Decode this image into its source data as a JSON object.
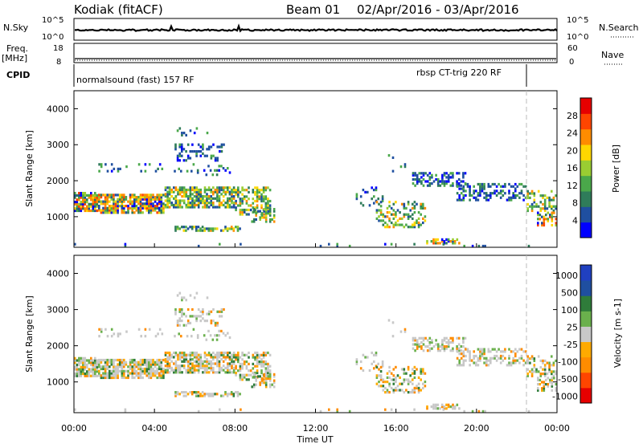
{
  "header": {
    "station": "Kodiak (fitACF)",
    "beam": "Beam 01",
    "date_range": "02/Apr/2016 - 03/Apr/2016"
  },
  "panels": {
    "nsky_label": "N.Sky",
    "nsearch_label": "N.Search",
    "freq_label": "Freq.",
    "freq_unit": "[MHz]",
    "nave_label": "Nave",
    "cpid_label": "CPID",
    "log_top": "10^5",
    "log_bottom": "10^0",
    "freq_ticks": [
      "18",
      "8"
    ],
    "nave_ticks": [
      "60",
      "0"
    ],
    "cpid_left": "normalsound (fast) 157 RF",
    "cpid_right": "rbsp CT-trig 220 RF"
  },
  "colors": {
    "power": [
      "#0000ff",
      "#1f4fa0",
      "#2f7c5a",
      "#4aa84a",
      "#9acd32",
      "#ffd700",
      "#ff8c00",
      "#ff4500",
      "#e60000"
    ],
    "velocity": [
      "#e60000",
      "#ff4500",
      "#ff8c00",
      "#ffaa00",
      "#c8c8c8",
      "#6ab04c",
      "#2f7c3a",
      "#1f4fa0",
      "#2040c0"
    ]
  },
  "chart_data": [
    {
      "type": "heatmap",
      "name": "power",
      "ylabel": "Slant Range [km]",
      "yticks": [
        1000,
        2000,
        3000,
        4000
      ],
      "ylim": [
        150,
        4500
      ],
      "xlim": [
        0,
        24
      ],
      "xticks": [
        "00:00",
        "04:00",
        "08:00",
        "12:00",
        "16:00",
        "20:00",
        "00:00"
      ],
      "colorbar_label": "Power [dB]",
      "colorbar_ticks": [
        "4",
        "8",
        "12",
        "16",
        "20",
        "24",
        "28"
      ],
      "colorbar_range": [
        0,
        32
      ]
    },
    {
      "type": "heatmap",
      "name": "velocity",
      "ylabel": "Slant Range [km]",
      "xlabel": "Time UT",
      "yticks": [
        1000,
        2000,
        3000,
        4000
      ],
      "ylim": [
        150,
        4500
      ],
      "xlim": [
        0,
        24
      ],
      "xticks": [
        "00:00",
        "04:00",
        "08:00",
        "12:00",
        "16:00",
        "20:00",
        "00:00"
      ],
      "colorbar_label": "Velocity [m s-1]",
      "colorbar_ticks": [
        "1000",
        "500",
        "100",
        "25",
        "-25",
        "-100",
        "-500",
        "-1000"
      ]
    }
  ]
}
